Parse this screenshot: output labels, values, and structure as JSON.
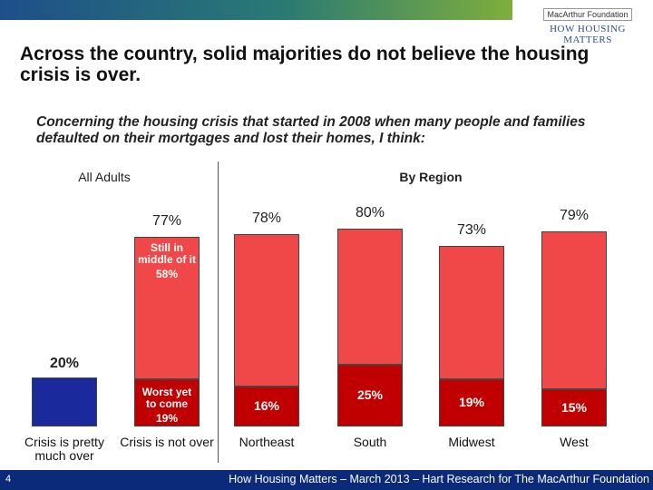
{
  "logo": {
    "org": "MacArthur Foundation",
    "program": "HOW HOUSING MATTERS"
  },
  "title": "Across the country, solid majorities do not believe the housing crisis is over.",
  "question": "Concerning the housing crisis that started in 2008 when many people and families defaulted on their mortgages and lost their homes, I think:",
  "footer": {
    "page": "4",
    "text": "How Housing Matters – March 2013 – Hart Research for The MacArthur Foundation"
  },
  "chart_data": [
    {
      "type": "bar",
      "stacked": true,
      "title": "All Adults",
      "categories": [
        "Crisis is pretty much over",
        "Crisis is not over"
      ],
      "series": [
        {
          "color": "#1a2a9c",
          "values": [
            20,
            null
          ],
          "value_labels": [
            "20%",
            null
          ]
        },
        {
          "name": "Worst yet to come",
          "color": "#c00000",
          "values": [
            null,
            19
          ],
          "value_labels": [
            null,
            "19%"
          ]
        },
        {
          "name": "Still in middle of it",
          "color": "#f04848",
          "values": [
            null,
            58
          ],
          "value_labels": [
            null,
            "58%"
          ]
        }
      ],
      "totals": [
        null,
        77
      ],
      "total_labels": [
        null,
        "77%"
      ]
    },
    {
      "type": "bar",
      "stacked": true,
      "title": "By Region",
      "categories": [
        "Northeast",
        "South",
        "Midwest",
        "West"
      ],
      "series": [
        {
          "color": "#c00000",
          "values": [
            16,
            25,
            19,
            15
          ],
          "value_labels": [
            "16%",
            "25%",
            "19%",
            "15%"
          ]
        },
        {
          "color": "#f04848",
          "values": [
            62,
            55,
            54,
            64
          ]
        }
      ],
      "totals": [
        78,
        80,
        73,
        79
      ],
      "total_labels": [
        "78%",
        "80%",
        "73%",
        "79%"
      ]
    }
  ]
}
